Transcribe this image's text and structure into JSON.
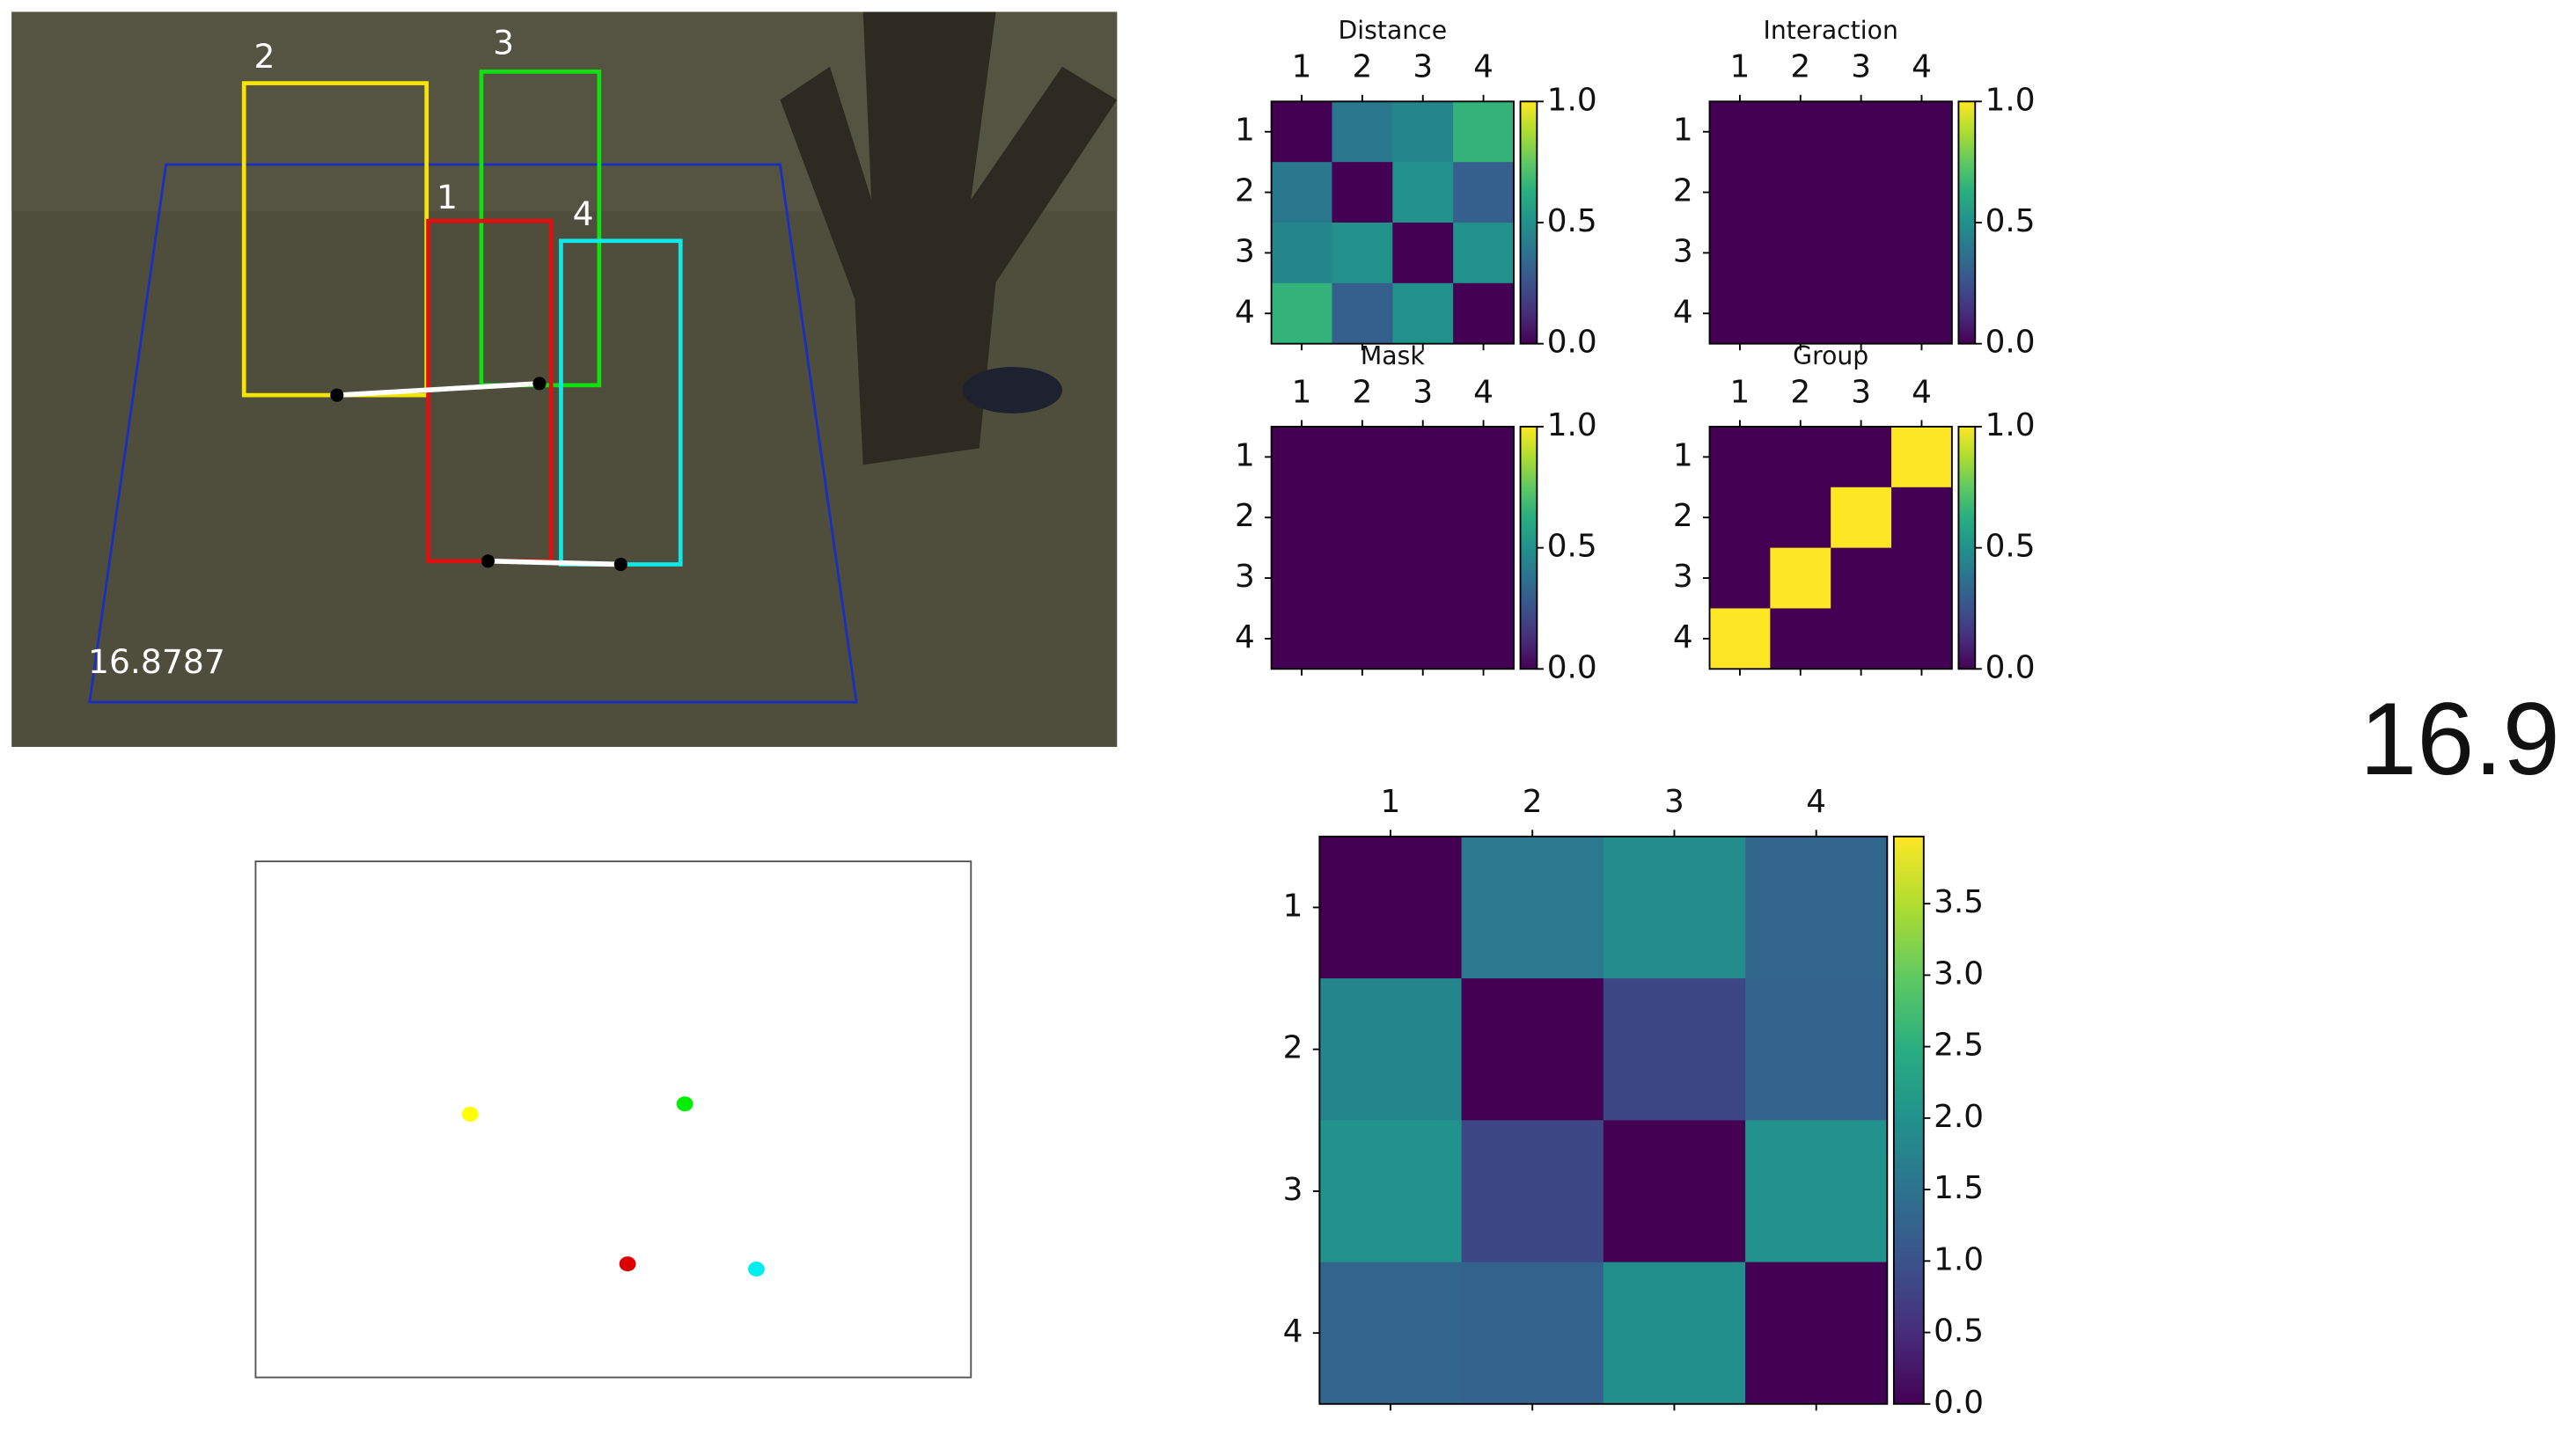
{
  "video_frame": {
    "box_labels": [
      "2",
      "3",
      "1",
      "4"
    ],
    "timestamp": "16.8787"
  },
  "frame_time": "16.9",
  "chart_data": [
    {
      "type": "heatmap",
      "title": "Distance",
      "categories": [
        "1",
        "2",
        "3",
        "4"
      ],
      "values": [
        [
          0,
          0.4,
          0.45,
          0.65
        ],
        [
          0.4,
          0,
          0.5,
          0.3
        ],
        [
          0.45,
          0.5,
          0,
          0.5
        ],
        [
          0.65,
          0.3,
          0.5,
          0
        ]
      ],
      "colormap": "viridis",
      "colorbar_lim": [
        0,
        1
      ],
      "colorbar_ticks": [
        {
          "value": 0,
          "label": "0.0"
        },
        {
          "value": 0.5,
          "label": "0.5"
        },
        {
          "value": 1,
          "label": "1.0"
        }
      ]
    },
    {
      "type": "heatmap",
      "title": "Interaction",
      "categories": [
        "1",
        "2",
        "3",
        "4"
      ],
      "values": [
        [
          0,
          0,
          0,
          0
        ],
        [
          0,
          0,
          0,
          0
        ],
        [
          0,
          0,
          0,
          0
        ],
        [
          0,
          0,
          0,
          0
        ]
      ],
      "colormap": "viridis",
      "colorbar_lim": [
        0,
        1
      ],
      "colorbar_ticks": [
        {
          "value": 0,
          "label": "0.0"
        },
        {
          "value": 0.5,
          "label": "0.5"
        },
        {
          "value": 1,
          "label": "1.0"
        }
      ]
    },
    {
      "type": "heatmap",
      "title": "Mask",
      "categories": [
        "1",
        "2",
        "3",
        "4"
      ],
      "values": [
        [
          0,
          0,
          0,
          0
        ],
        [
          0,
          0,
          0,
          0
        ],
        [
          0,
          0,
          0,
          0
        ],
        [
          0,
          0,
          0,
          0
        ]
      ],
      "colormap": "viridis",
      "colorbar_lim": [
        0,
        1
      ],
      "colorbar_ticks": [
        {
          "value": 0,
          "label": "0.0"
        },
        {
          "value": 0.5,
          "label": "0.5"
        },
        {
          "value": 1,
          "label": "1.0"
        }
      ]
    },
    {
      "type": "heatmap",
      "title": "Group",
      "categories": [
        "1",
        "2",
        "3",
        "4"
      ],
      "values": [
        [
          0,
          0,
          0,
          1
        ],
        [
          0,
          0,
          1,
          0
        ],
        [
          0,
          1,
          0,
          0
        ],
        [
          1,
          0,
          0,
          0
        ]
      ],
      "colormap": "viridis",
      "colorbar_lim": [
        0,
        1
      ],
      "colorbar_ticks": [
        {
          "value": 0,
          "label": "0.0"
        },
        {
          "value": 0.5,
          "label": "0.5"
        },
        {
          "value": 1,
          "label": "1.0"
        }
      ]
    },
    {
      "type": "heatmap",
      "categories": [
        "1",
        "2",
        "3",
        "4"
      ],
      "values": [
        [
          0,
          1.6,
          1.9,
          1.3
        ],
        [
          1.8,
          0,
          0.85,
          1.25
        ],
        [
          2.0,
          0.85,
          0,
          2.0
        ],
        [
          1.3,
          1.25,
          1.95,
          0
        ]
      ],
      "colormap": "viridis",
      "colorbar_lim": [
        0,
        3.97
      ],
      "colorbar_ticks": [
        {
          "value": 0,
          "label": "0.0"
        },
        {
          "value": 0.5,
          "label": "0.5"
        },
        {
          "value": 1,
          "label": "1.0"
        },
        {
          "value": 1.5,
          "label": "1.5"
        },
        {
          "value": 2,
          "label": "2.0"
        },
        {
          "value": 2.5,
          "label": "2.5"
        },
        {
          "value": 3,
          "label": "3.0"
        },
        {
          "value": 3.5,
          "label": "3.5"
        }
      ]
    },
    {
      "type": "scatter",
      "x": [
        0.3,
        0.6,
        0.52,
        0.7
      ],
      "y": [
        0.51,
        0.53,
        0.22,
        0.21
      ],
      "colors": [
        "#ffff00",
        "#00ee00",
        "#dd0000",
        "#00eeee"
      ],
      "xlim": [
        0,
        1
      ],
      "ylim": [
        0,
        1
      ]
    }
  ]
}
